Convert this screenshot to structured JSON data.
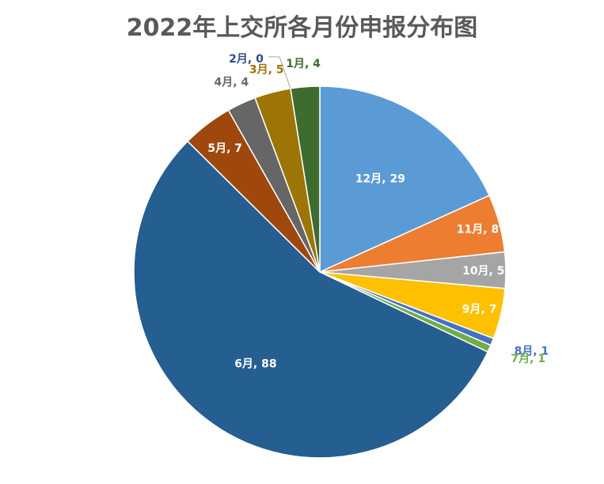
{
  "chart_data": {
    "type": "pie",
    "title": "2022年上交所各月份申报分布图",
    "categories": [
      "1月",
      "2月",
      "3月",
      "4月",
      "5月",
      "6月",
      "7月",
      "8月",
      "9月",
      "10月",
      "11月",
      "12月"
    ],
    "values": [
      4,
      0,
      5,
      4,
      7,
      88,
      1,
      1,
      7,
      5,
      8,
      29
    ],
    "data_labels": [
      "1月, 4",
      "2月, 0",
      "3月, 5",
      "4月, 4",
      "5月, 7",
      "6月, 88",
      "7月, 1",
      "8月, 1",
      "9月, 7",
      "10月, 5",
      "11月, 8",
      "12月, 29"
    ],
    "colors": [
      "#3e6b2e",
      "#2f4c8a",
      "#9c7506",
      "#666666",
      "#9e480e",
      "#255e91",
      "#70ad47",
      "#4472c4",
      "#ffc000",
      "#a5a5a5",
      "#ed7d31",
      "#5b9bd5"
    ],
    "label_colors": [
      "#3e6b2e",
      "#2f4c8a",
      "#9c7506",
      "#666666",
      "#ffffff",
      "#ffffff",
      "#70ad47",
      "#4472c4",
      "#ffffff",
      "#ffffff",
      "#ffffff",
      "#ffffff"
    ],
    "legend": "none"
  }
}
